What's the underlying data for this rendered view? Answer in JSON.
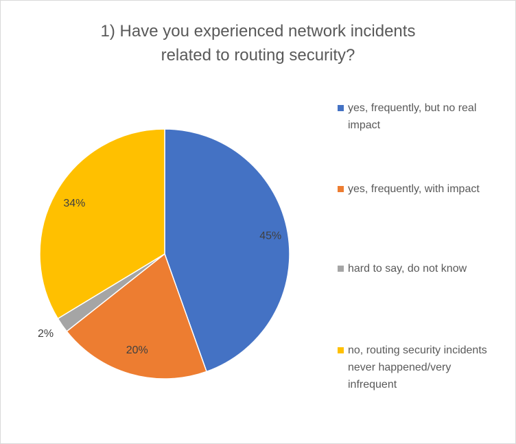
{
  "chart_data": {
    "type": "pie",
    "title_lines": [
      "1) Have you experienced network incidents",
      "related to routing security?"
    ],
    "start_angle_deg": 0,
    "direction": "clockwise",
    "legend_position": "right",
    "slices": [
      {
        "label": "yes, frequently, but no real impact",
        "value": 45,
        "value_label": "45%",
        "color": "#4472c4"
      },
      {
        "label": "yes, frequently, with impact",
        "value": 20,
        "value_label": "20%",
        "color": "#ed7d31"
      },
      {
        "label": "hard to say, do not know",
        "value": 2,
        "value_label": "2%",
        "color": "#a5a5a5"
      },
      {
        "label": "no, routing security incidents never happened/very infrequent",
        "value": 34,
        "value_label": "34%",
        "color": "#ffc000"
      }
    ]
  }
}
